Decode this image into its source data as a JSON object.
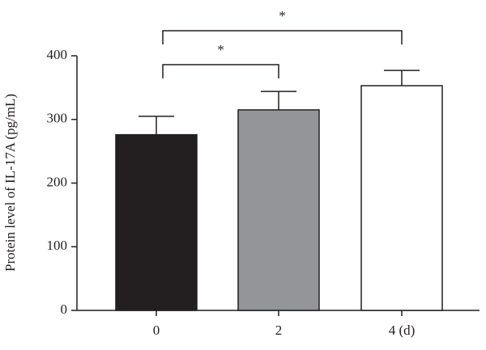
{
  "chart_data": {
    "type": "bar",
    "y_label": "Protein level of IL-17A (pg/mL)",
    "categories": [
      "0",
      "2",
      "4 (d)"
    ],
    "values": [
      276,
      315,
      353
    ],
    "errors": [
      29,
      29,
      24
    ],
    "colors": [
      "#231f20",
      "#939598",
      "#ffffff"
    ],
    "ylim": [
      0,
      400
    ],
    "yticks": [
      0,
      100,
      200,
      300,
      400
    ],
    "annotations": [
      {
        "text": "*",
        "from": 0,
        "to": 1
      },
      {
        "text": "*",
        "from": 0,
        "to": 2
      }
    ]
  }
}
